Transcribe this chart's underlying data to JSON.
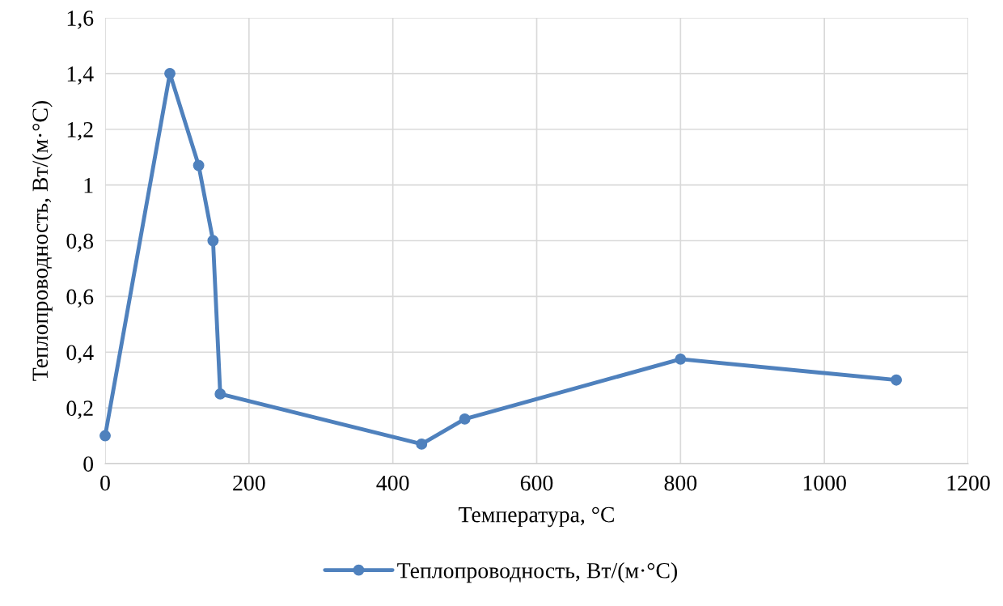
{
  "chart_data": {
    "type": "line",
    "xlabel": "Температура, °С",
    "ylabel": "Теплопроводность, Вт/(м·°С)",
    "x": [
      0,
      90,
      130,
      150,
      160,
      440,
      500,
      800,
      1100
    ],
    "series": [
      {
        "name": "Теплопроводность, Вт/(м·°С)",
        "color": "#4f81bd",
        "values": [
          0.1,
          1.4,
          1.07,
          0.8,
          0.25,
          0.07,
          0.16,
          0.375,
          0.3
        ]
      }
    ],
    "xlim": [
      0,
      1200
    ],
    "xticks": [
      0,
      200,
      400,
      600,
      800,
      1000,
      1200
    ],
    "ylim": [
      0,
      1.6
    ],
    "yticks": [
      0,
      {
        "value": 0.2,
        "label": "0,2"
      },
      {
        "value": 0.4,
        "label": "0,4"
      },
      {
        "value": 0.6,
        "label": "0,6"
      },
      {
        "value": 0.8,
        "label": "0,8"
      },
      1,
      {
        "value": 1.2,
        "label": "1,2"
      },
      {
        "value": 1.4,
        "label": "1,4"
      },
      {
        "value": 1.6,
        "label": "1,6"
      }
    ],
    "grid": true,
    "legend": "bottom",
    "marker": "circle",
    "line_style": "solid"
  }
}
